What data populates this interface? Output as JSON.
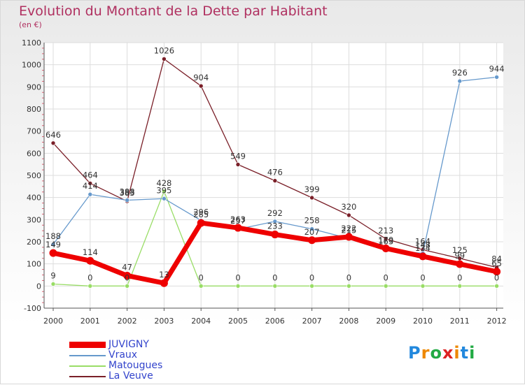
{
  "title": "Evolution du Montant de la Dette par Habitant",
  "subtitle": "(en €)",
  "logo": {
    "text": "Proxiti",
    "letters": [
      "P",
      "r",
      "o",
      "x",
      "i",
      "t",
      "i"
    ],
    "colors": [
      "#2288dd",
      "#ee8800",
      "#22aa44",
      "#dd2222",
      "#ee8800",
      "#2288dd",
      "#22aa44"
    ]
  },
  "chart_data": {
    "type": "line",
    "title": "Evolution du Montant de la Dette par Habitant",
    "subtitle": "(en €)",
    "xlabel": "",
    "ylabel": "",
    "ylim": [
      -100,
      1100
    ],
    "yticks": [
      -100,
      0,
      100,
      200,
      300,
      400,
      500,
      600,
      700,
      800,
      900,
      1000,
      1100
    ],
    "grid": true,
    "legend_position": "bottom-left",
    "x": [
      "2000",
      "2001",
      "2002",
      "2003",
      "2004",
      "2005",
      "2006",
      "2007",
      "2008",
      "2009",
      "2010",
      "2011",
      "2012"
    ],
    "series": [
      {
        "name": "La Veuve",
        "color": "#7a1f28",
        "width": 1.3,
        "values": [
          646,
          464,
          383,
          1026,
          904,
          549,
          476,
          399,
          320,
          213,
          164,
          125,
          84
        ],
        "labels": [
          "646",
          "464",
          "383",
          "1026",
          "904",
          "549",
          "476",
          "399",
          "320",
          "213",
          "164",
          "125",
          "84"
        ]
      },
      {
        "name": "Matougues",
        "color": "#99dd66",
        "width": 1.3,
        "values": [
          9,
          0,
          0,
          428,
          0,
          0,
          0,
          0,
          0,
          0,
          0,
          0,
          0
        ],
        "labels": [
          "9",
          "0",
          "0",
          "428",
          "0",
          "0",
          "0",
          "0",
          "0",
          "0",
          "0",
          "0",
          "0"
        ]
      },
      {
        "name": "Vraux",
        "color": "#6699cc",
        "width": 1.3,
        "values": [
          188,
          414,
          388,
          395,
          296,
          257,
          292,
          258,
          215,
          163,
          148,
          926,
          944
        ],
        "labels": [
          "188",
          "414",
          "388",
          "395",
          "296",
          "257",
          "292",
          "258",
          "215",
          "163",
          "148",
          "926",
          "944"
        ]
      },
      {
        "name": "JUVIGNY",
        "color": "#ee0000",
        "width": 7,
        "values": [
          149,
          114,
          47,
          13,
          285,
          263,
          233,
          207,
          222,
          170,
          134,
          99,
          65
        ],
        "labels": [
          "149",
          "114",
          "47",
          "13",
          "285",
          "263",
          "233",
          "207",
          "222",
          "170",
          "134",
          "99",
          "65"
        ]
      }
    ],
    "legend_order": [
      "JUVIGNY",
      "Vraux",
      "Matougues",
      "La Veuve"
    ]
  }
}
